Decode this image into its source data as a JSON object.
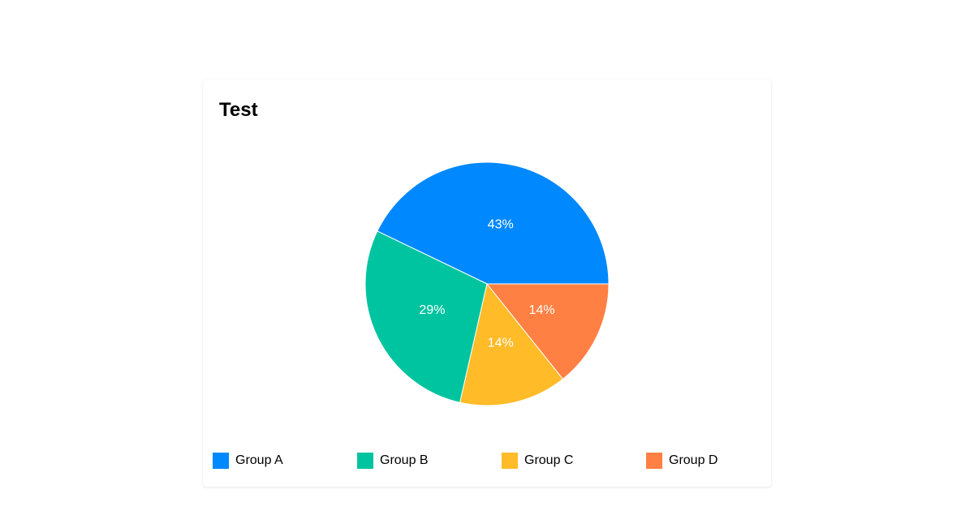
{
  "card": {
    "title": "Test"
  },
  "chart_data": {
    "type": "pie",
    "title": "Test",
    "categories": [
      "Group A",
      "Group B",
      "Group C",
      "Group D"
    ],
    "values": [
      3,
      2,
      1,
      1
    ],
    "percentages": [
      43,
      29,
      14,
      14
    ],
    "labels": [
      "43%",
      "29%",
      "14%",
      "14%"
    ],
    "colors": [
      "#0088FE",
      "#00C49F",
      "#FFBB28",
      "#FF8042"
    ],
    "start_angle_deg": 0,
    "direction": "counter-clockwise",
    "legend_position": "bottom"
  },
  "legend": {
    "items": [
      {
        "label": "Group A",
        "color": "#0088FE"
      },
      {
        "label": "Group B",
        "color": "#00C49F"
      },
      {
        "label": "Group C",
        "color": "#FFBB28"
      },
      {
        "label": "Group D",
        "color": "#FF8042"
      }
    ]
  }
}
